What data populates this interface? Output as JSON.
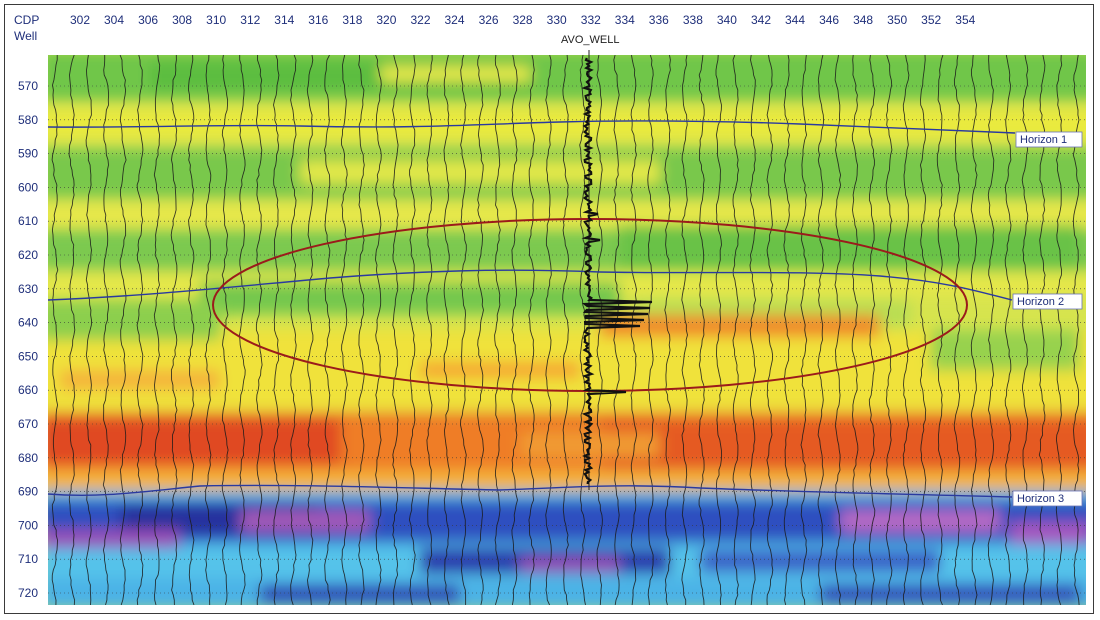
{
  "header": {
    "cdp_label": "CDP",
    "well_label": "Well",
    "well_name": "AVO_WELL"
  },
  "axes": {
    "cdp_ticks": [
      "302",
      "304",
      "306",
      "308",
      "310",
      "312",
      "314",
      "316",
      "318",
      "320",
      "322",
      "324",
      "326",
      "328",
      "330",
      "332",
      "334",
      "336",
      "338",
      "340",
      "342",
      "344",
      "346",
      "348",
      "350",
      "352",
      "354"
    ],
    "time_ticks": [
      "570",
      "580",
      "590",
      "600",
      "610",
      "620",
      "630",
      "640",
      "650",
      "660",
      "670",
      "680",
      "690",
      "700",
      "710",
      "720"
    ]
  },
  "horizons": [
    {
      "label": "Horizon 1"
    },
    {
      "label": "Horizon 2"
    },
    {
      "label": "Horizon 3"
    }
  ],
  "colors": {
    "horizon_line": "#2a3aa0",
    "ellipse": "#9b1b1b",
    "well_log": "#111111",
    "axis_text": "#1f2f7a"
  }
}
